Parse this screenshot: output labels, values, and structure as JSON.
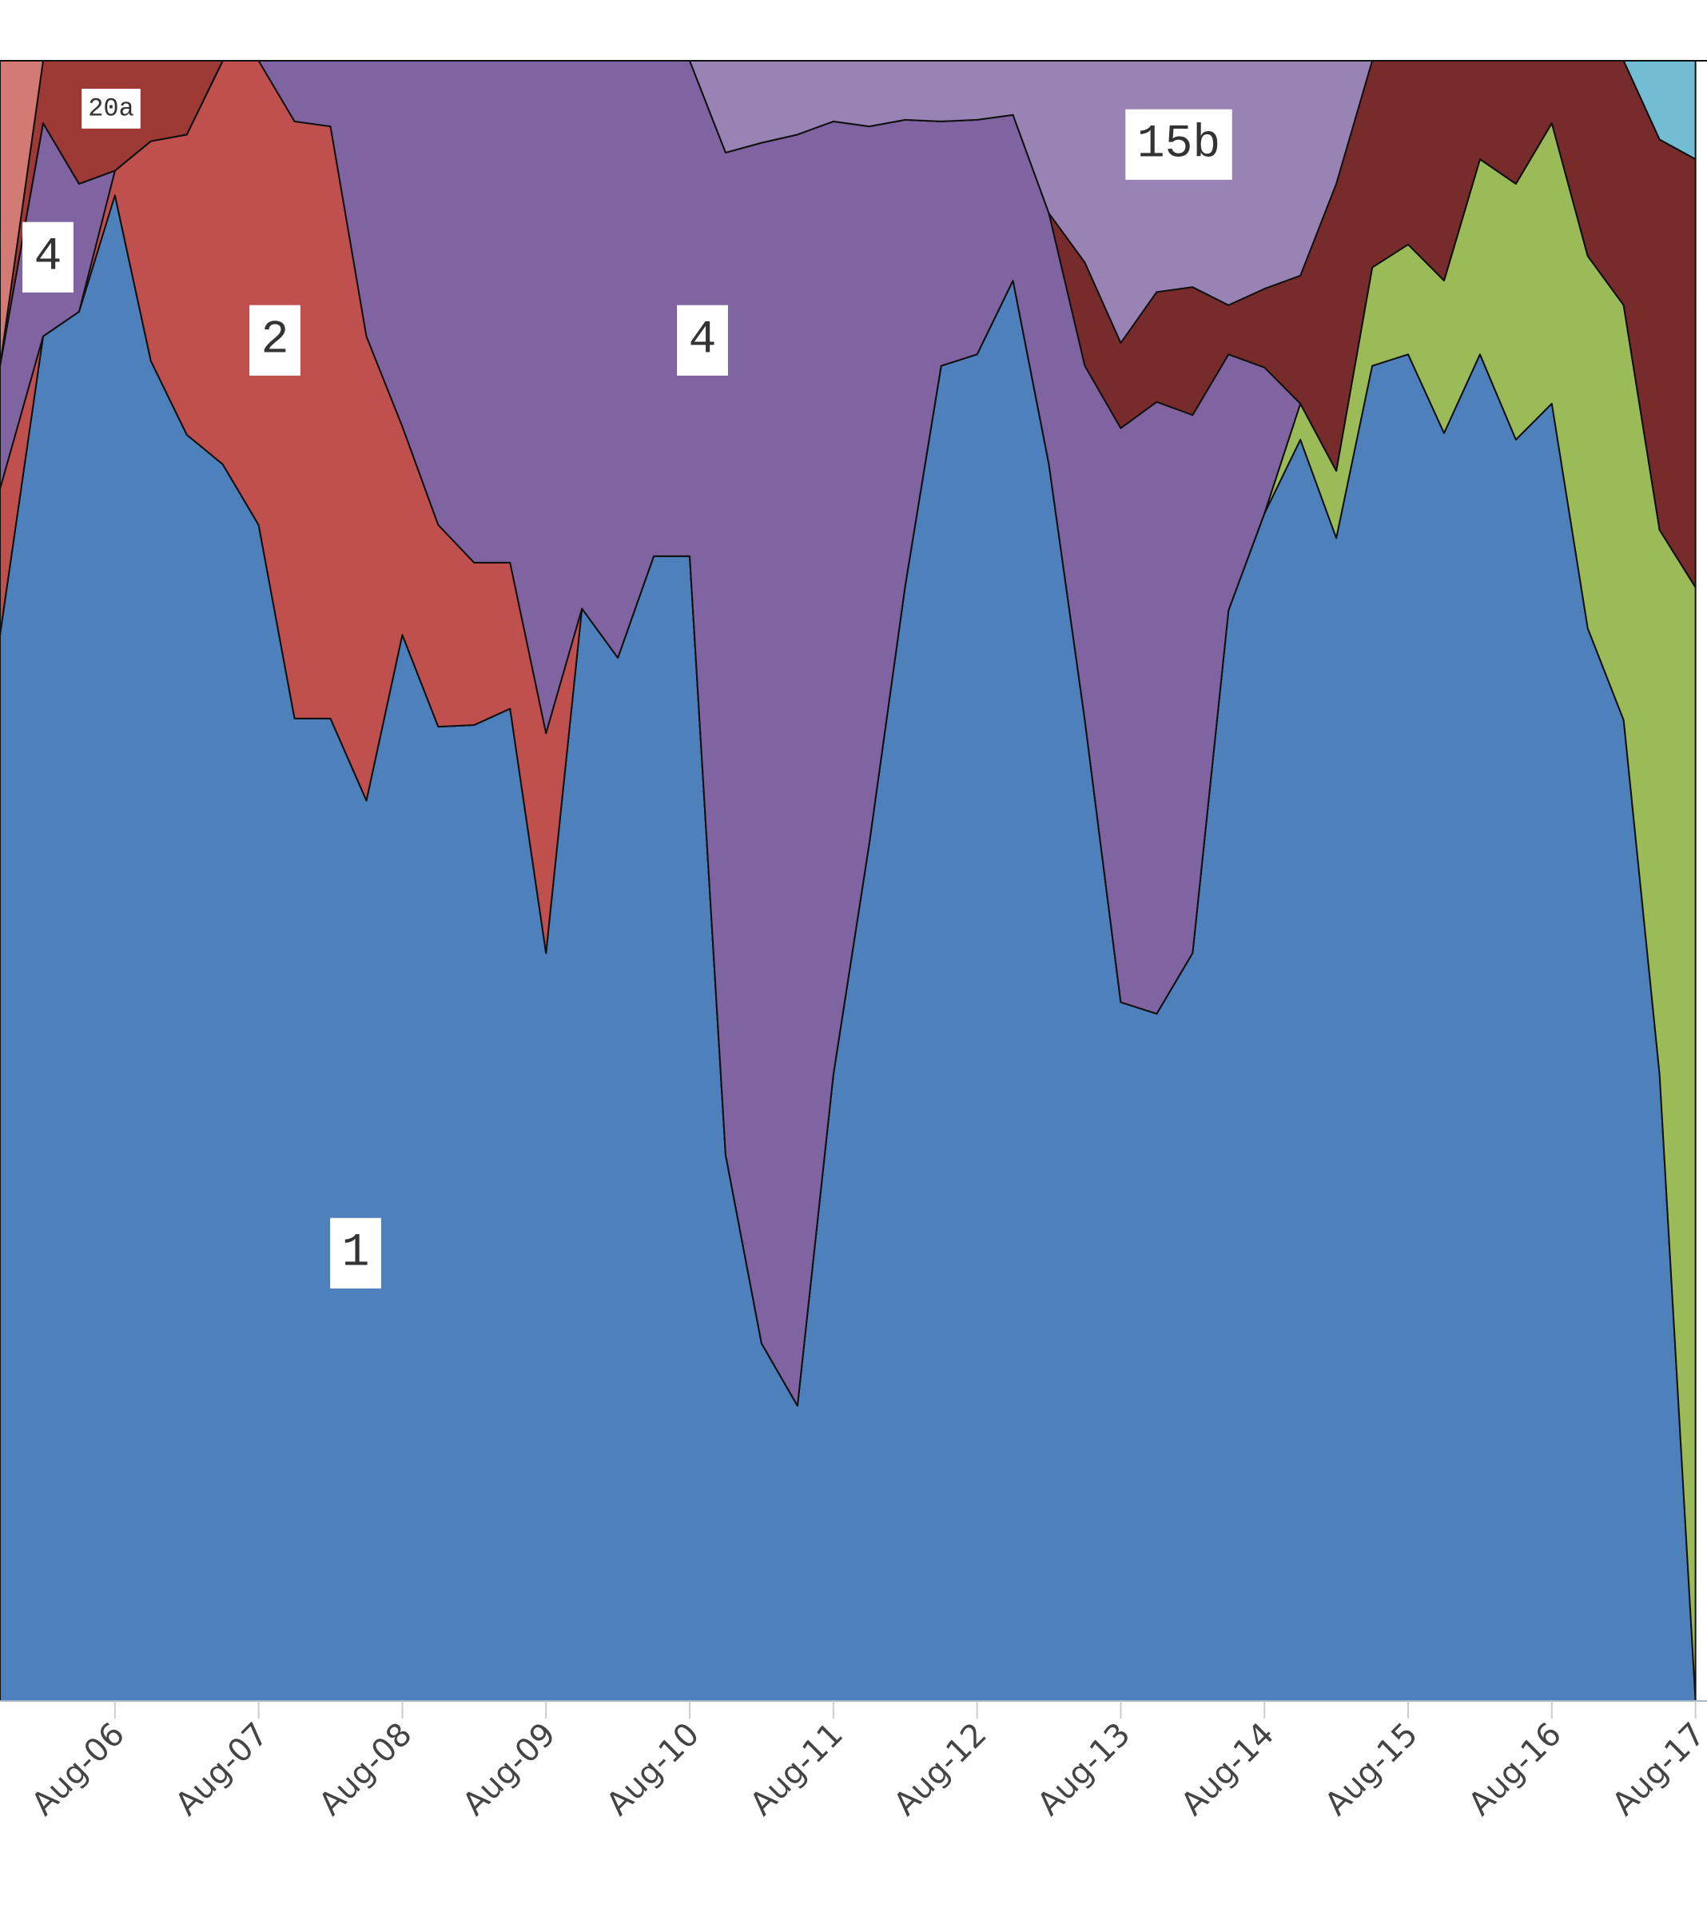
{
  "chart_data": {
    "type": "stacked_area",
    "x": [
      5.2,
      5.5,
      5.75,
      6,
      6.25,
      6.5,
      6.75,
      7,
      7.25,
      7.5,
      7.75,
      8,
      8.25,
      8.5,
      8.75,
      9,
      9.25,
      9.5,
      9.75,
      10,
      10.25,
      10.5,
      10.75,
      11,
      11.25,
      11.5,
      11.75,
      12,
      12.25,
      12.5,
      12.75,
      13,
      13.25,
      13.5,
      13.75,
      14,
      14.25,
      14.5,
      14.75,
      15,
      15.25,
      15.5,
      15.75,
      16,
      16.25,
      16.5,
      16.75,
      17
    ],
    "xlim": [
      5.2,
      17.08
    ],
    "xticks": [
      {
        "value": 6,
        "label": "Aug-06"
      },
      {
        "value": 7,
        "label": "Aug-07"
      },
      {
        "value": 8,
        "label": "Aug-08"
      },
      {
        "value": 9,
        "label": "Aug-09"
      },
      {
        "value": 10,
        "label": "Aug-10"
      },
      {
        "value": 11,
        "label": "Aug-11"
      },
      {
        "value": 12,
        "label": "Aug-12"
      },
      {
        "value": 13,
        "label": "Aug-13"
      },
      {
        "value": 14,
        "label": "Aug-14"
      },
      {
        "value": 15,
        "label": "Aug-15"
      },
      {
        "value": 16,
        "label": "Aug-16"
      },
      {
        "value": 17,
        "label": "Aug-17"
      }
    ],
    "ylim": [
      0,
      1
    ],
    "series": [
      {
        "name": "1",
        "color": "#4e80bc",
        "values": [
          0.65,
          0.832,
          0.847,
          0.918,
          0.817,
          0.772,
          0.754,
          0.717,
          0.599,
          0.599,
          0.549,
          0.65,
          0.594,
          0.595,
          0.605,
          0.456,
          0.666,
          0.636,
          0.698,
          0.698,
          0.333,
          0.218,
          0.18,
          0.382,
          0.523,
          0.68,
          0.814,
          0.821,
          0.866,
          0.754,
          0.598,
          0.426,
          0.419,
          0.456,
          0.665,
          0.724,
          0.769,
          0.709,
          0.814,
          0.821,
          0.773,
          0.821,
          0.769,
          0.791,
          0.654,
          0.598,
          0.382,
          0
        ]
      },
      {
        "color": "#9bbb59",
        "values": [
          0,
          0,
          0,
          0,
          0,
          0,
          0,
          0,
          0,
          0,
          0,
          0,
          0,
          0,
          0,
          0,
          0,
          0,
          0,
          0,
          0,
          0,
          0,
          0,
          0,
          0,
          0,
          0,
          0,
          0,
          0,
          0,
          0,
          0,
          0,
          0,
          0.022,
          0.041,
          0.06,
          0.067,
          0.093,
          0.119,
          0.156,
          0.171,
          0.227,
          0.253,
          0.332,
          0.679
        ]
      },
      {
        "name": "2",
        "color": "#c0504d",
        "values": [
          0.089,
          0,
          0,
          0.015,
          0.134,
          0.183,
          0.246,
          0.283,
          0.364,
          0.361,
          0.283,
          0.127,
          0.123,
          0.099,
          0.089,
          0.134,
          0,
          0,
          0,
          0,
          0,
          0,
          0,
          0,
          0,
          0,
          0,
          0,
          0,
          0,
          0,
          0,
          0,
          0,
          0,
          0,
          0,
          0,
          0,
          0,
          0,
          0,
          0,
          0,
          0,
          0,
          0,
          0
        ]
      },
      {
        "name": "4",
        "color": "#8064a2",
        "values": [
          0.075,
          0.13,
          0.078,
          0,
          0,
          0,
          0,
          0,
          0.037,
          0.04,
          0.168,
          0.223,
          0.283,
          0.306,
          0.306,
          0.41,
          0.334,
          0.364,
          0.302,
          0.302,
          0.611,
          0.732,
          0.775,
          0.581,
          0.437,
          0.284,
          0.149,
          0.143,
          0.101,
          0.153,
          0.216,
          0.35,
          0.373,
          0.328,
          0.156,
          0.089,
          0,
          0,
          0,
          0,
          0,
          0,
          0,
          0,
          0,
          0,
          0,
          0
        ]
      },
      {
        "color": "#772b2b",
        "values": [
          0,
          0,
          0,
          0,
          0,
          0,
          0,
          0,
          0,
          0,
          0,
          0,
          0,
          0,
          0,
          0,
          0,
          0,
          0,
          0,
          0,
          0,
          0,
          0,
          0,
          0,
          0,
          0,
          0,
          0,
          0.063,
          0.052,
          0.067,
          0.078,
          0.03,
          0.048,
          0.078,
          0.175,
          0.126,
          0.112,
          0.134,
          0.06,
          0.075,
          0.038,
          0.119,
          0.149,
          0.238,
          0.261
        ]
      },
      {
        "name": "15b",
        "color": "#9983b5",
        "values": [
          0,
          0,
          0,
          0,
          0,
          0,
          0,
          0,
          0,
          0,
          0,
          0,
          0,
          0,
          0,
          0,
          0,
          0,
          0,
          0,
          0.056,
          0.05,
          0.045,
          0.037,
          0.04,
          0.036,
          0.037,
          0.036,
          0.033,
          0.093,
          0.123,
          0.172,
          0.141,
          0.138,
          0.149,
          0.139,
          0.131,
          0.075,
          0,
          0,
          0,
          0,
          0,
          0,
          0,
          0,
          0,
          0
        ]
      },
      {
        "name": "20a",
        "color": "#9e3a36",
        "values": [
          0,
          0.038,
          0.075,
          0.067,
          0.049,
          0.045,
          0,
          0,
          0,
          0,
          0,
          0,
          0,
          0,
          0,
          0,
          0,
          0,
          0,
          0,
          0,
          0,
          0,
          0,
          0,
          0,
          0,
          0,
          0,
          0,
          0,
          0,
          0,
          0,
          0,
          0,
          0,
          0,
          0,
          0,
          0,
          0,
          0,
          0,
          0,
          0,
          0,
          0
        ]
      },
      {
        "color": "#72bcd4",
        "values": [
          0,
          0,
          0,
          0,
          0,
          0,
          0,
          0,
          0,
          0,
          0,
          0,
          0,
          0,
          0,
          0,
          0,
          0,
          0,
          0,
          0,
          0,
          0,
          0,
          0,
          0,
          0,
          0,
          0,
          0,
          0,
          0,
          0,
          0,
          0,
          0,
          0,
          0,
          0,
          0,
          0,
          0,
          0,
          0,
          0,
          0,
          0.048,
          0.06
        ]
      },
      {
        "color": "#d47a74",
        "values": [
          0.186,
          0,
          0,
          0,
          0,
          0,
          0,
          0,
          0,
          0,
          0,
          0,
          0,
          0,
          0,
          0,
          0,
          0,
          0,
          0,
          0,
          0,
          0,
          0,
          0,
          0,
          0,
          0,
          0,
          0,
          0,
          0,
          0,
          0,
          0,
          0,
          0,
          0,
          0,
          0,
          0,
          0,
          0,
          0,
          0,
          0,
          0,
          0
        ]
      }
    ]
  }
}
